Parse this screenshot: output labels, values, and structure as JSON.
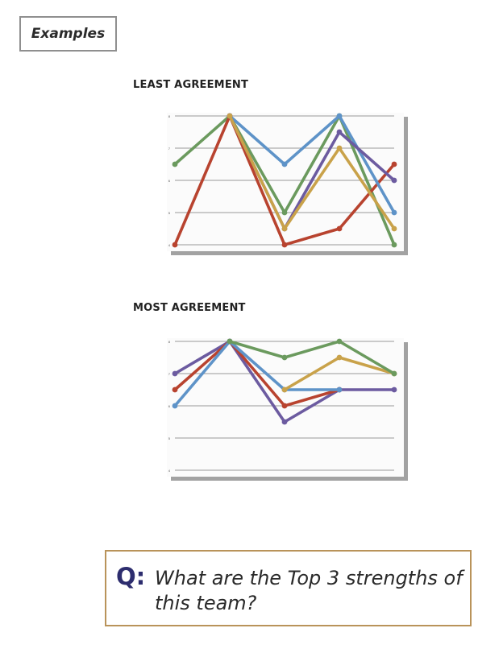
{
  "examples_label": "Examples",
  "question": {
    "mark": "Q:",
    "text": "What are the Top 3 strengths of this team?"
  },
  "chart_data": [
    {
      "type": "line",
      "title": "LEAST AGREEMENT",
      "x": [
        1,
        2,
        3,
        4,
        5
      ],
      "ylim": [
        4,
        8
      ],
      "yticks": [
        4,
        5,
        6,
        7,
        8
      ],
      "grid": true,
      "series": [
        {
          "color": "#6b9a5e",
          "values": [
            6.5,
            8,
            5,
            8,
            4
          ]
        },
        {
          "color": "#b8432f",
          "values": [
            4,
            8,
            4,
            4.5,
            6.5
          ]
        },
        {
          "color": "#5e93c8",
          "values": [
            null,
            8,
            6.5,
            8,
            5
          ]
        },
        {
          "color": "#6c5ba0",
          "values": [
            null,
            8,
            4.5,
            7.5,
            6
          ]
        },
        {
          "color": "#c9a24a",
          "values": [
            null,
            8,
            4.5,
            7,
            4.5
          ]
        }
      ]
    },
    {
      "type": "line",
      "title": "MOST AGREEMENT",
      "x": [
        1,
        2,
        3,
        4,
        5
      ],
      "ylim": [
        4,
        8
      ],
      "yticks": [
        4,
        5,
        6,
        7,
        8
      ],
      "grid": true,
      "series": [
        {
          "color": "#6c5ba0",
          "values": [
            7,
            8,
            5.5,
            6.5,
            6.5
          ]
        },
        {
          "color": "#b8432f",
          "values": [
            6.5,
            8,
            6,
            6.5,
            null
          ]
        },
        {
          "color": "#5e93c8",
          "values": [
            6,
            8,
            6.5,
            6.5,
            null
          ]
        },
        {
          "color": "#c9a24a",
          "values": [
            null,
            null,
            6.5,
            7.5,
            7
          ]
        },
        {
          "color": "#6b9a5e",
          "values": [
            null,
            8,
            7.5,
            8,
            7
          ]
        }
      ]
    }
  ]
}
